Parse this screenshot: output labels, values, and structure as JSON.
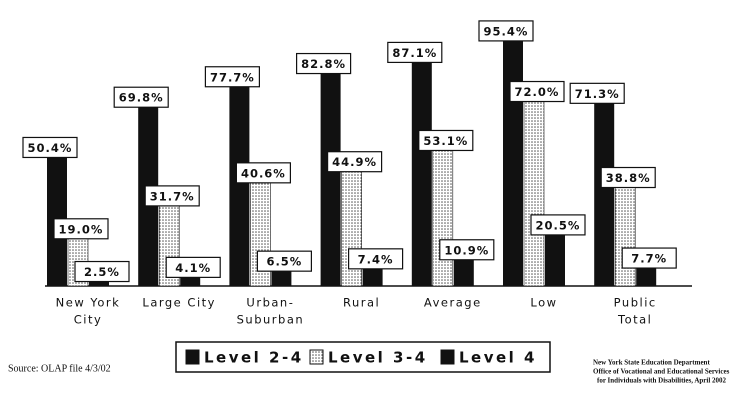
{
  "chart_data": {
    "type": "bar",
    "categories": [
      [
        "New York",
        "City"
      ],
      [
        "Large City"
      ],
      [
        "Urban-",
        "Suburban"
      ],
      [
        "Rural"
      ],
      [
        "Average"
      ],
      [
        "Low"
      ],
      [
        "Public",
        "Total"
      ]
    ],
    "series": [
      {
        "name": "Level 2-4",
        "color": "#111111",
        "values": [
          50.4,
          69.8,
          77.7,
          82.8,
          87.1,
          95.4,
          71.3
        ],
        "value_labels": [
          "50.4%",
          "69.8%",
          "77.7%",
          "82.8%",
          "87.1%",
          "95.4%",
          "71.3%"
        ]
      },
      {
        "name": "Level 3-4",
        "color": "#cccccc",
        "values": [
          19.0,
          31.7,
          40.6,
          44.9,
          53.1,
          72.0,
          38.8
        ],
        "value_labels": [
          "19.0%",
          "31.7%",
          "40.6%",
          "44.9%",
          "53.1%",
          "72.0%",
          "38.8%"
        ]
      },
      {
        "name": "Level 4",
        "color": "#111111",
        "values": [
          2.5,
          4.1,
          6.5,
          7.4,
          10.9,
          20.5,
          7.7
        ],
        "value_labels": [
          "2.5%",
          "4.1%",
          "6.5%",
          "7.4%",
          "10.9%",
          "20.5%",
          "7.7%"
        ]
      }
    ],
    "source": "Source: OLAP file 4/3/02",
    "credit": [
      "New York State Education Department",
      "Office of Vocational and Educational Services",
      "for Individuals with Disabilities, April 2002"
    ]
  }
}
